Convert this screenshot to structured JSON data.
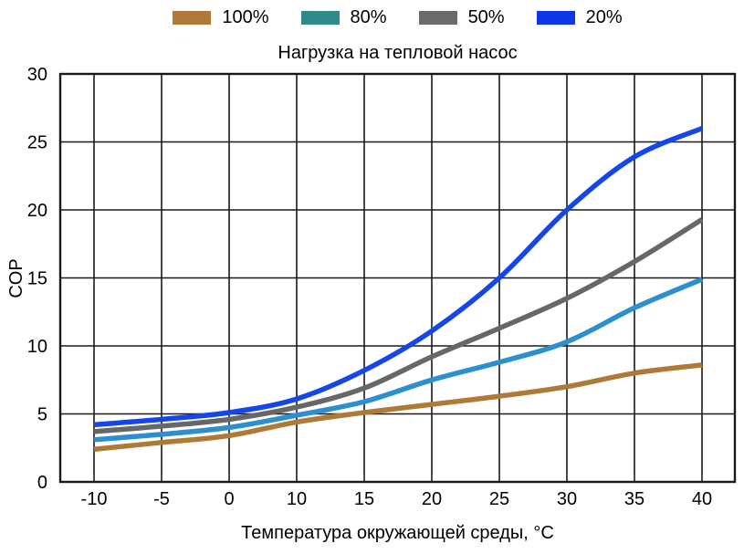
{
  "chart_data": {
    "type": "line",
    "title": "Нагрузка на тепловой насос",
    "xlabel": "Температура окружающей среды, °C",
    "ylabel": "COP",
    "x": [
      -10,
      -5,
      0,
      10,
      15,
      20,
      25,
      30,
      35,
      40
    ],
    "x_axis_note": "category axis, equal spacing between listed temperatures",
    "y_ticks": [
      0,
      5,
      10,
      15,
      20,
      25,
      30
    ],
    "ylim": [
      0,
      30
    ],
    "grid": true,
    "legend_position": "top",
    "series": [
      {
        "name": "100%",
        "legend_color": "#ae7a36",
        "line_color": "#ae7a36",
        "values": [
          2.4,
          2.9,
          3.4,
          4.4,
          5.1,
          5.7,
          6.3,
          7.0,
          8.0,
          8.6
        ]
      },
      {
        "name": "80%",
        "legend_color": "#2f8a8a",
        "line_color": "#2b8fd0",
        "values": [
          3.1,
          3.5,
          4.0,
          4.9,
          5.9,
          7.5,
          8.8,
          10.3,
          12.8,
          14.9
        ]
      },
      {
        "name": "50%",
        "legend_color": "#6b6b6b",
        "line_color": "#676767",
        "values": [
          3.7,
          4.1,
          4.6,
          5.5,
          6.9,
          9.2,
          11.3,
          13.5,
          16.2,
          19.3
        ]
      },
      {
        "name": "20%",
        "legend_color": "#0d36e6",
        "line_color": "#1546eb",
        "values": [
          4.2,
          4.6,
          5.1,
          6.1,
          8.2,
          11.1,
          15.0,
          20.0,
          23.9,
          26.0
        ]
      }
    ],
    "colors": {
      "background": "#ffffff",
      "axis": "#1a1a1a",
      "text": "#000000"
    }
  }
}
